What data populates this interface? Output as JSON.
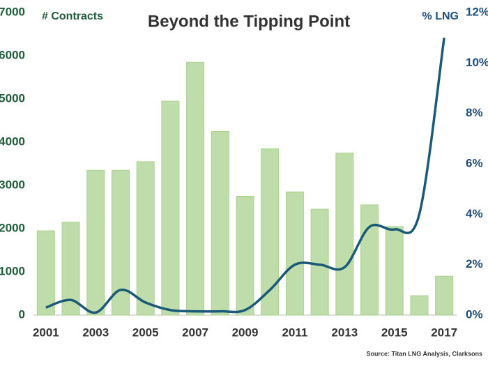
{
  "chart_data": {
    "type": "bar",
    "title": "Beyond the Tipping Point",
    "y_label": "# Contracts",
    "y2_label": "% LNG",
    "source": "Source: Titan LNG Analysis, Clarksons",
    "categories": [
      "2001",
      null,
      "2003",
      null,
      "2005",
      null,
      "2007",
      null,
      "2009",
      null,
      "2011",
      null,
      "2013",
      null,
      "2015",
      null,
      "2017"
    ],
    "series": [
      {
        "type": "bar",
        "color": "#a9d18e",
        "values": [
          1950,
          2150,
          3350,
          3350,
          3550,
          4950,
          5850,
          4250,
          2750,
          3850,
          2850,
          2450,
          3750,
          2550,
          2050,
          450,
          900
        ]
      },
      {
        "type": "line",
        "axis": "y2",
        "color": "#1a5a78",
        "values": [
          0.3,
          0.6,
          0.1,
          1.0,
          0.5,
          0.2,
          0.15,
          0.15,
          0.2,
          1.0,
          2.0,
          2.0,
          1.9,
          3.5,
          3.4,
          4.0,
          11.0
        ]
      }
    ],
    "ylim": [
      0,
      7000
    ],
    "yticks": [
      0,
      1000,
      2000,
      3000,
      4000,
      5000,
      6000,
      7000
    ],
    "y2lim": [
      0,
      12
    ],
    "y2ticks": [
      {
        "value": 0,
        "label": "0%"
      },
      {
        "value": 2,
        "label": "2%"
      },
      {
        "value": 4,
        "label": "4%"
      },
      {
        "value": 6,
        "label": "6%"
      },
      {
        "value": 8,
        "label": "8%"
      },
      {
        "value": 10,
        "label": "10%"
      },
      {
        "value": 12,
        "label": "12%"
      }
    ]
  }
}
